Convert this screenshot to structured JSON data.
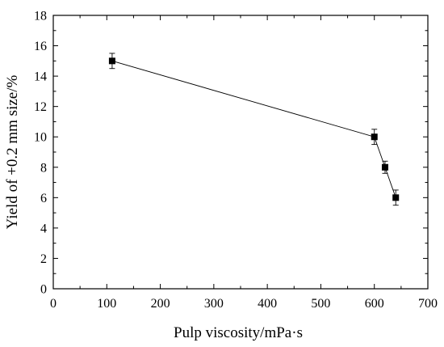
{
  "chart_data": {
    "type": "line",
    "title": "",
    "xlabel": "Pulp viscosity/mPa·s",
    "ylabel": "Yield of +0.2 mm size/%",
    "xlim": [
      0,
      700
    ],
    "ylim": [
      0,
      18
    ],
    "x_ticks": [
      0,
      100,
      200,
      300,
      400,
      500,
      600,
      700
    ],
    "y_ticks": [
      0,
      2,
      4,
      6,
      8,
      10,
      12,
      14,
      16,
      18
    ],
    "grid": false,
    "legend": "none",
    "marker": "square",
    "error_bars": true,
    "series": [
      {
        "x": [
          110,
          600,
          620,
          640
        ],
        "y": [
          15,
          10,
          8,
          6
        ],
        "error": [
          0.5,
          0.5,
          0.4,
          0.5
        ],
        "color": "#000000"
      }
    ]
  }
}
